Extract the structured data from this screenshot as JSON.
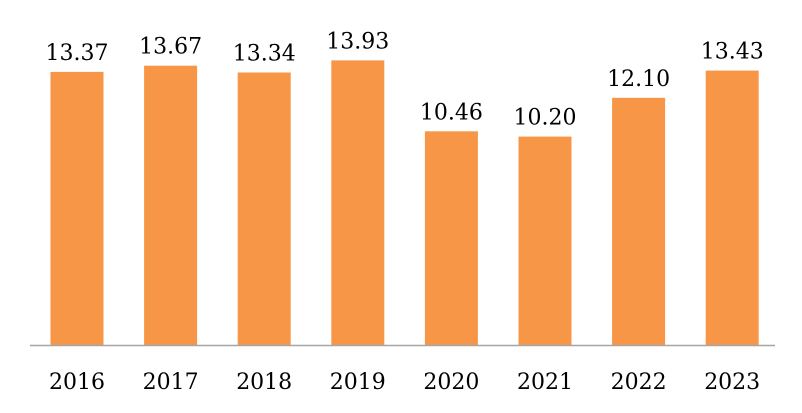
{
  "chart_data": {
    "type": "bar",
    "categories": [
      "2016",
      "2017",
      "2018",
      "2019",
      "2020",
      "2021",
      "2022",
      "2023"
    ],
    "values": [
      13.37,
      13.67,
      13.34,
      13.93,
      10.46,
      10.2,
      12.1,
      13.43
    ],
    "value_labels": [
      "13.37",
      "13.67",
      "13.34",
      "13.93",
      "10.46",
      "10.20",
      "12.10",
      "13.43"
    ],
    "title": "",
    "xlabel": "",
    "ylabel": "",
    "ylim": [
      0,
      14.0
    ],
    "grid": false,
    "legend": "none",
    "colors": {
      "bar": "#F79646",
      "axis": "#A6A6A6",
      "text": "#000000"
    }
  }
}
